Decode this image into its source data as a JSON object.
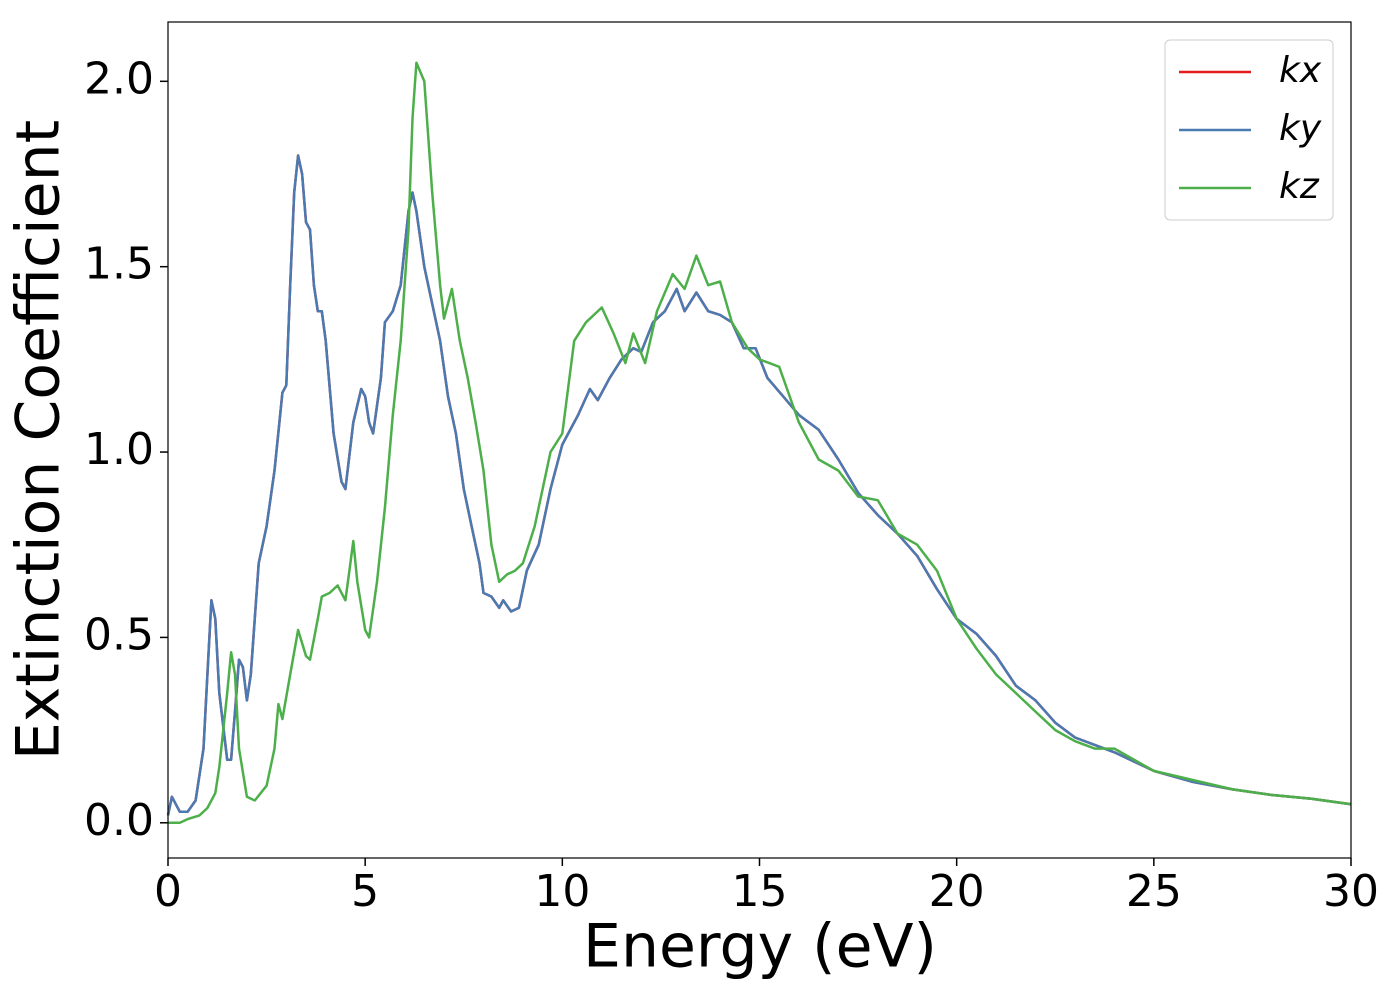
{
  "chart_data": {
    "type": "line",
    "xlabel": "Energy (eV)",
    "ylabel": "Extinction Coefficient",
    "xlim": [
      0,
      30
    ],
    "ylim": [
      -0.095,
      2.16
    ],
    "xticks": [
      0,
      5,
      10,
      15,
      20,
      25,
      30
    ],
    "yticks": [
      {
        "value": 0,
        "label": "0.0"
      },
      0.5,
      {
        "value": 1,
        "label": "1.0"
      },
      1.5,
      {
        "value": 2,
        "label": "2.0"
      }
    ],
    "legend": "upper right",
    "series": [
      {
        "name": "kx",
        "color": "#e41a1c",
        "x": [
          0,
          0.1,
          0.3,
          0.5,
          0.7,
          0.9,
          1.0,
          1.1,
          1.2,
          1.3,
          1.5,
          1.6,
          1.7,
          1.8,
          1.9,
          2.0,
          2.1,
          2.3,
          2.5,
          2.7,
          2.9,
          3.0,
          3.1,
          3.2,
          3.3,
          3.4,
          3.5,
          3.6,
          3.7,
          3.8,
          3.9,
          4.0,
          4.2,
          4.4,
          4.5,
          4.7,
          4.9,
          5.0,
          5.1,
          5.2,
          5.4,
          5.5,
          5.7,
          5.9,
          6.0,
          6.1,
          6.2,
          6.3,
          6.5,
          6.7,
          6.9,
          7.1,
          7.3,
          7.5,
          7.7,
          7.9,
          8.0,
          8.2,
          8.4,
          8.5,
          8.7,
          8.9,
          9.1,
          9.4,
          9.7,
          10.0,
          10.4,
          10.7,
          10.9,
          11.2,
          11.5,
          11.8,
          12.0,
          12.3,
          12.6,
          12.9,
          13.1,
          13.4,
          13.7,
          14.0,
          14.3,
          14.6,
          14.9,
          15.2,
          15.6,
          16.0,
          16.5,
          17.0,
          17.5,
          18.0,
          18.5,
          19.0,
          19.5,
          20.0,
          20.5,
          21.0,
          21.5,
          22.0,
          22.5,
          23.0,
          23.5,
          24.0,
          25.0,
          26.0,
          27.0,
          28.0,
          29.0,
          30.0
        ],
        "values": [
          0.02,
          0.07,
          0.03,
          0.03,
          0.06,
          0.2,
          0.4,
          0.6,
          0.55,
          0.35,
          0.17,
          0.17,
          0.3,
          0.44,
          0.42,
          0.33,
          0.4,
          0.7,
          0.8,
          0.95,
          1.16,
          1.18,
          1.45,
          1.7,
          1.8,
          1.75,
          1.62,
          1.6,
          1.45,
          1.38,
          1.38,
          1.3,
          1.05,
          0.92,
          0.9,
          1.08,
          1.17,
          1.15,
          1.08,
          1.05,
          1.2,
          1.35,
          1.38,
          1.45,
          1.55,
          1.65,
          1.7,
          1.65,
          1.5,
          1.4,
          1.3,
          1.15,
          1.05,
          0.9,
          0.8,
          0.7,
          0.62,
          0.61,
          0.58,
          0.6,
          0.57,
          0.58,
          0.68,
          0.75,
          0.9,
          1.02,
          1.1,
          1.17,
          1.14,
          1.2,
          1.25,
          1.28,
          1.27,
          1.35,
          1.38,
          1.44,
          1.38,
          1.43,
          1.38,
          1.37,
          1.35,
          1.28,
          1.28,
          1.2,
          1.15,
          1.1,
          1.06,
          0.98,
          0.89,
          0.83,
          0.78,
          0.72,
          0.63,
          0.55,
          0.51,
          0.45,
          0.37,
          0.33,
          0.27,
          0.23,
          0.21,
          0.19,
          0.14,
          0.11,
          0.09,
          0.075,
          0.065,
          0.05
        ]
      },
      {
        "name": "ky",
        "color": "#4a7ab2",
        "x": [
          0,
          0.1,
          0.3,
          0.5,
          0.7,
          0.9,
          1.0,
          1.1,
          1.2,
          1.3,
          1.5,
          1.6,
          1.7,
          1.8,
          1.9,
          2.0,
          2.1,
          2.3,
          2.5,
          2.7,
          2.9,
          3.0,
          3.1,
          3.2,
          3.3,
          3.4,
          3.5,
          3.6,
          3.7,
          3.8,
          3.9,
          4.0,
          4.2,
          4.4,
          4.5,
          4.7,
          4.9,
          5.0,
          5.1,
          5.2,
          5.4,
          5.5,
          5.7,
          5.9,
          6.0,
          6.1,
          6.2,
          6.3,
          6.5,
          6.7,
          6.9,
          7.1,
          7.3,
          7.5,
          7.7,
          7.9,
          8.0,
          8.2,
          8.4,
          8.5,
          8.7,
          8.9,
          9.1,
          9.4,
          9.7,
          10.0,
          10.4,
          10.7,
          10.9,
          11.2,
          11.5,
          11.8,
          12.0,
          12.3,
          12.6,
          12.9,
          13.1,
          13.4,
          13.7,
          14.0,
          14.3,
          14.6,
          14.9,
          15.2,
          15.6,
          16.0,
          16.5,
          17.0,
          17.5,
          18.0,
          18.5,
          19.0,
          19.5,
          20.0,
          20.5,
          21.0,
          21.5,
          22.0,
          22.5,
          23.0,
          23.5,
          24.0,
          25.0,
          26.0,
          27.0,
          28.0,
          29.0,
          30.0
        ],
        "values": [
          0.02,
          0.07,
          0.03,
          0.03,
          0.06,
          0.2,
          0.4,
          0.6,
          0.55,
          0.35,
          0.17,
          0.17,
          0.3,
          0.44,
          0.42,
          0.33,
          0.4,
          0.7,
          0.8,
          0.95,
          1.16,
          1.18,
          1.45,
          1.7,
          1.8,
          1.75,
          1.62,
          1.6,
          1.45,
          1.38,
          1.38,
          1.3,
          1.05,
          0.92,
          0.9,
          1.08,
          1.17,
          1.15,
          1.08,
          1.05,
          1.2,
          1.35,
          1.38,
          1.45,
          1.55,
          1.65,
          1.7,
          1.65,
          1.5,
          1.4,
          1.3,
          1.15,
          1.05,
          0.9,
          0.8,
          0.7,
          0.62,
          0.61,
          0.58,
          0.6,
          0.57,
          0.58,
          0.68,
          0.75,
          0.9,
          1.02,
          1.1,
          1.17,
          1.14,
          1.2,
          1.25,
          1.28,
          1.27,
          1.35,
          1.38,
          1.44,
          1.38,
          1.43,
          1.38,
          1.37,
          1.35,
          1.28,
          1.28,
          1.2,
          1.15,
          1.1,
          1.06,
          0.98,
          0.89,
          0.83,
          0.78,
          0.72,
          0.63,
          0.55,
          0.51,
          0.45,
          0.37,
          0.33,
          0.27,
          0.23,
          0.21,
          0.19,
          0.14,
          0.11,
          0.09,
          0.075,
          0.065,
          0.05
        ]
      },
      {
        "name": "kz",
        "color": "#4daf4a",
        "x": [
          0,
          0.3,
          0.5,
          0.8,
          1.0,
          1.2,
          1.3,
          1.5,
          1.6,
          1.7,
          1.8,
          2.0,
          2.2,
          2.5,
          2.7,
          2.8,
          2.9,
          3.1,
          3.3,
          3.5,
          3.6,
          3.8,
          3.9,
          4.1,
          4.3,
          4.5,
          4.6,
          4.7,
          4.8,
          5.0,
          5.1,
          5.3,
          5.5,
          5.7,
          5.9,
          6.1,
          6.2,
          6.3,
          6.5,
          6.7,
          6.9,
          7.0,
          7.2,
          7.4,
          7.6,
          7.8,
          8.0,
          8.2,
          8.4,
          8.6,
          8.8,
          9.0,
          9.3,
          9.7,
          10.0,
          10.3,
          10.6,
          11.0,
          11.3,
          11.6,
          11.8,
          12.1,
          12.4,
          12.8,
          13.1,
          13.4,
          13.7,
          14.0,
          14.3,
          14.7,
          15.0,
          15.5,
          16.0,
          16.5,
          17.0,
          17.5,
          18.0,
          18.5,
          19.0,
          19.5,
          20.0,
          20.5,
          21.0,
          21.5,
          22.0,
          22.5,
          23.0,
          23.5,
          24.0,
          25.0,
          26.0,
          27.0,
          28.0,
          29.0,
          30.0
        ],
        "values": [
          0.0,
          0.0,
          0.01,
          0.02,
          0.04,
          0.08,
          0.15,
          0.35,
          0.46,
          0.4,
          0.2,
          0.07,
          0.06,
          0.1,
          0.2,
          0.32,
          0.28,
          0.4,
          0.52,
          0.45,
          0.44,
          0.55,
          0.61,
          0.62,
          0.64,
          0.6,
          0.68,
          0.76,
          0.65,
          0.52,
          0.5,
          0.65,
          0.85,
          1.1,
          1.3,
          1.6,
          1.9,
          2.05,
          2.0,
          1.7,
          1.45,
          1.36,
          1.44,
          1.3,
          1.2,
          1.08,
          0.95,
          0.75,
          0.65,
          0.67,
          0.68,
          0.7,
          0.8,
          1.0,
          1.05,
          1.3,
          1.35,
          1.39,
          1.32,
          1.24,
          1.32,
          1.24,
          1.38,
          1.48,
          1.44,
          1.53,
          1.45,
          1.46,
          1.35,
          1.28,
          1.25,
          1.23,
          1.08,
          0.98,
          0.95,
          0.88,
          0.87,
          0.78,
          0.75,
          0.68,
          0.55,
          0.47,
          0.4,
          0.35,
          0.3,
          0.25,
          0.22,
          0.2,
          0.2,
          0.14,
          0.115,
          0.09,
          0.075,
          0.065,
          0.05
        ]
      }
    ]
  }
}
